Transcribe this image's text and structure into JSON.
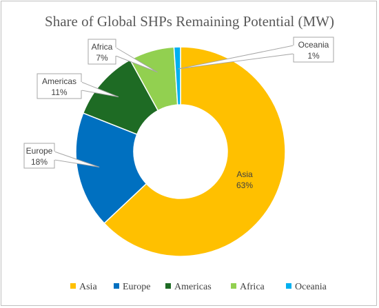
{
  "chart_data": {
    "type": "pie",
    "title": "Share of Global SHPs Remaining Potential  (MW)",
    "categories": [
      "Asia",
      "Europe",
      "Americas",
      "Africa",
      "Oceania"
    ],
    "values": [
      63,
      18,
      11,
      7,
      1
    ],
    "labels": [
      "63%",
      "18%",
      "11%",
      "7%",
      "1%"
    ],
    "colors": [
      "#FFC000",
      "#0070C0",
      "#1E6B24",
      "#92D050",
      "#00B0F0"
    ],
    "legend_position": "bottom",
    "grid": false
  }
}
